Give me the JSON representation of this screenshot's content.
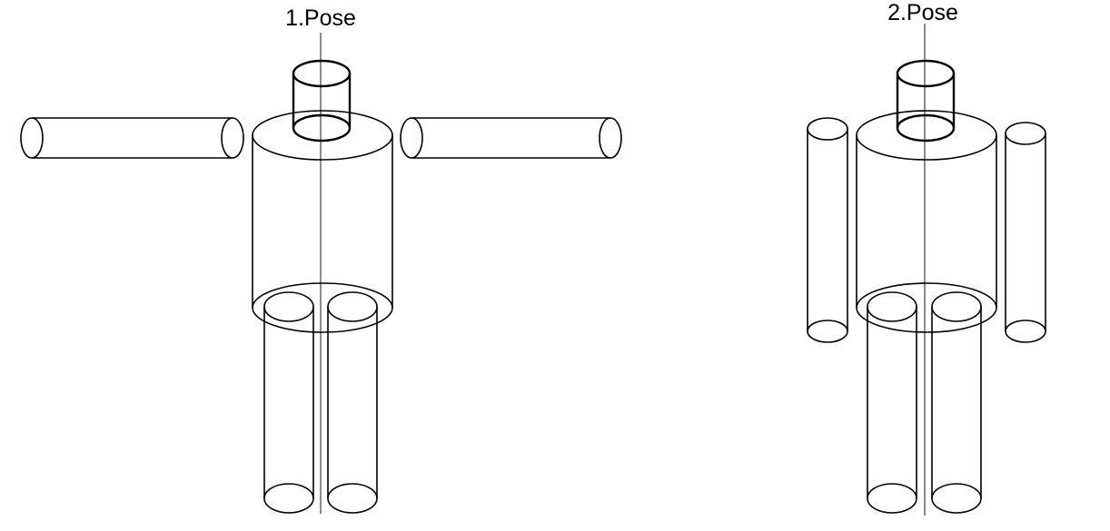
{
  "figures": [
    {
      "label": "1.Pose"
    },
    {
      "label": "2.Pose"
    }
  ],
  "colors": {
    "stroke": "#000000",
    "background": "#ffffff"
  }
}
